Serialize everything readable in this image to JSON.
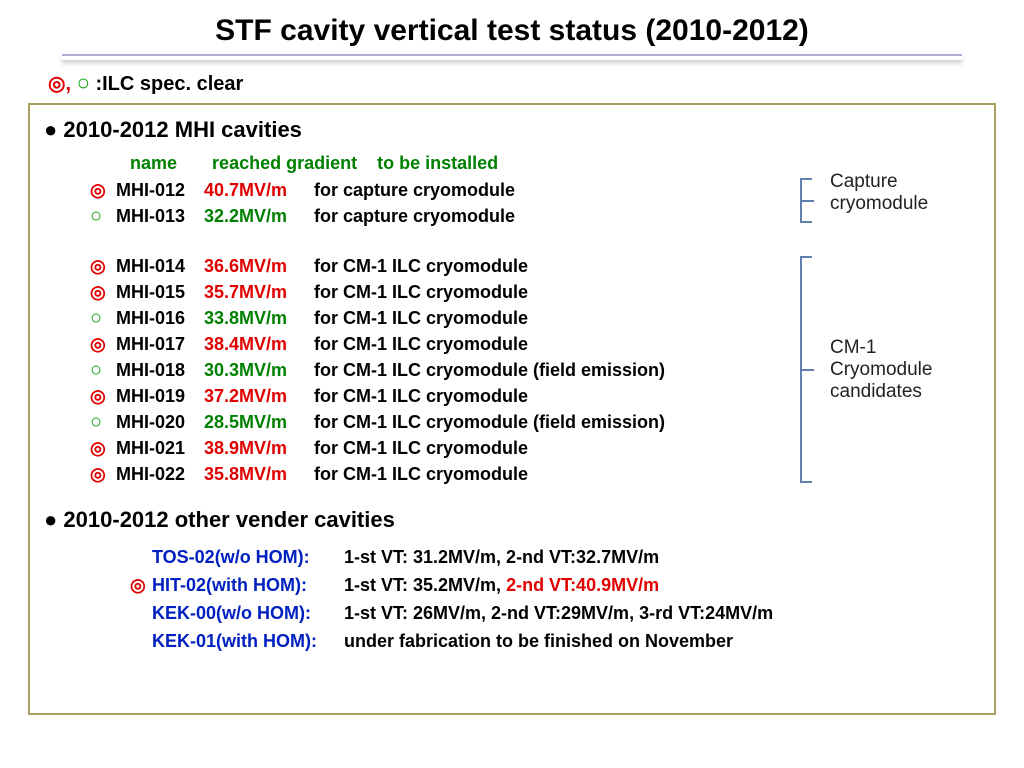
{
  "title": "STF cavity vertical test status (2010-2012)",
  "legend": {
    "sym1": "◎",
    "comma": ",",
    "sym2": "○",
    "text": ":ILC spec. clear"
  },
  "section1": {
    "bullet": "●",
    "text": "2010-2012    MHI cavities"
  },
  "headers": {
    "name": "name",
    "grad": "reached gradient",
    "dest": "to be installed"
  },
  "group1": [
    {
      "icon": "double",
      "name": "MHI-012",
      "grad": "40.7MV/m",
      "gradcolor": "red",
      "dest": "for capture cryomodule"
    },
    {
      "icon": "single",
      "name": "MHI-013",
      "grad": "32.2MV/m",
      "gradcolor": "green",
      "dest": "for capture cryomodule"
    }
  ],
  "group2": [
    {
      "icon": "double",
      "name": "MHI-014",
      "grad": "36.6MV/m",
      "gradcolor": "red",
      "dest": "for CM-1 ILC cryomodule"
    },
    {
      "icon": "double",
      "name": "MHI-015",
      "grad": "35.7MV/m",
      "gradcolor": "red",
      "dest": "for CM-1 ILC cryomodule"
    },
    {
      "icon": "single",
      "name": "MHI-016",
      "grad": "33.8MV/m",
      "gradcolor": "green",
      "dest": "for CM-1 ILC cryomodule"
    },
    {
      "icon": "double",
      "name": "MHI-017",
      "grad": "38.4MV/m",
      "gradcolor": "red",
      "dest": "for CM-1 ILC cryomodule"
    },
    {
      "icon": "single",
      "name": "MHI-018",
      "grad": "30.3MV/m",
      "gradcolor": "green",
      "dest": "for CM-1 ILC cryomodule  (field emission)"
    },
    {
      "icon": "double",
      "name": "MHI-019",
      "grad": "37.2MV/m",
      "gradcolor": "red",
      "dest": "for CM-1 ILC cryomodule"
    },
    {
      "icon": "single",
      "name": "MHI-020",
      "grad": "28.5MV/m",
      "gradcolor": "green",
      "dest": "for CM-1 ILC cryomodule  (field emission)"
    },
    {
      "icon": "double",
      "name": "MHI-021",
      "grad": "38.9MV/m",
      "gradcolor": "red",
      "dest": "for CM-1 ILC cryomodule"
    },
    {
      "icon": "double",
      "name": "MHI-022",
      "grad": "35.8MV/m",
      "gradcolor": "red",
      "dest": "for CM-1 ILC cryomodule"
    }
  ],
  "annot1": {
    "line1": "Capture",
    "line2": "cryomodule"
  },
  "annot2": {
    "line1": "CM-1",
    "line2": "Cryomodule",
    "line3": "candidates"
  },
  "section2": {
    "bullet": "●",
    "text": "2010-2012    other vender cavities"
  },
  "vendors": [
    {
      "icon": "",
      "name": "TOS-02(w/o HOM):",
      "result": "1-st VT: 31.2MV/m, 2-nd VT:32.7MV/m",
      "highlight": ""
    },
    {
      "icon": "double",
      "name": "HIT-02(with HOM):",
      "result": "1-st VT: 35.2MV/m, ",
      "highlight": "2-nd VT:40.9MV/m"
    },
    {
      "icon": "",
      "name": "KEK-00(w/o HOM):",
      "result": "1-st VT: 26MV/m, 2-nd VT:29MV/m, 3-rd VT:24MV/m",
      "highlight": ""
    },
    {
      "icon": "",
      "name": "KEK-01(with HOM):",
      "result": "under fabrication to be finished on November",
      "highlight": ""
    }
  ]
}
